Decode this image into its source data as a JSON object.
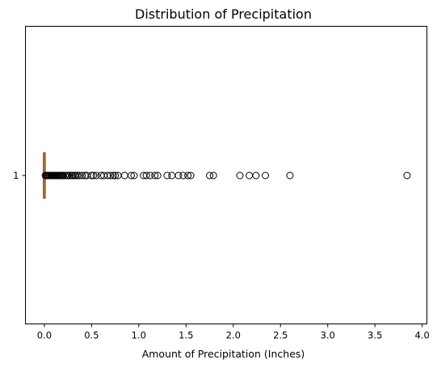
{
  "chart_data": {
    "type": "boxplot",
    "orientation": "horizontal",
    "title": "Distribution of Precipitation",
    "xlabel": "Amount of Precipitation (Inches)",
    "ylabel": "",
    "xlim": [
      -0.2,
      4.05
    ],
    "x_ticks": [
      "0.0",
      "0.5",
      "1.0",
      "1.5",
      "2.0",
      "2.5",
      "3.0",
      "3.5",
      "4.0"
    ],
    "y_ticks": [
      "1"
    ],
    "grid": false,
    "series": [
      {
        "position": 1,
        "min": 0.0,
        "q1": 0.0,
        "median": 0.0,
        "q3": 0.0,
        "max": 0.0,
        "outliers": [
          0.01,
          0.02,
          0.03,
          0.04,
          0.05,
          0.06,
          0.07,
          0.08,
          0.09,
          0.1,
          0.11,
          0.12,
          0.13,
          0.14,
          0.15,
          0.16,
          0.17,
          0.18,
          0.19,
          0.2,
          0.22,
          0.24,
          0.25,
          0.27,
          0.29,
          0.3,
          0.32,
          0.33,
          0.35,
          0.37,
          0.4,
          0.43,
          0.45,
          0.5,
          0.52,
          0.55,
          0.6,
          0.63,
          0.67,
          0.7,
          0.73,
          0.75,
          0.78,
          0.85,
          0.92,
          0.95,
          1.05,
          1.08,
          1.12,
          1.17,
          1.2,
          1.3,
          1.35,
          1.42,
          1.47,
          1.52,
          1.55,
          1.75,
          1.79,
          2.07,
          2.17,
          2.24,
          2.34,
          2.6,
          3.84
        ]
      }
    ],
    "colors": {
      "box": "#000000",
      "median": "#ff7f0e",
      "outlier_edge": "#000000"
    }
  }
}
